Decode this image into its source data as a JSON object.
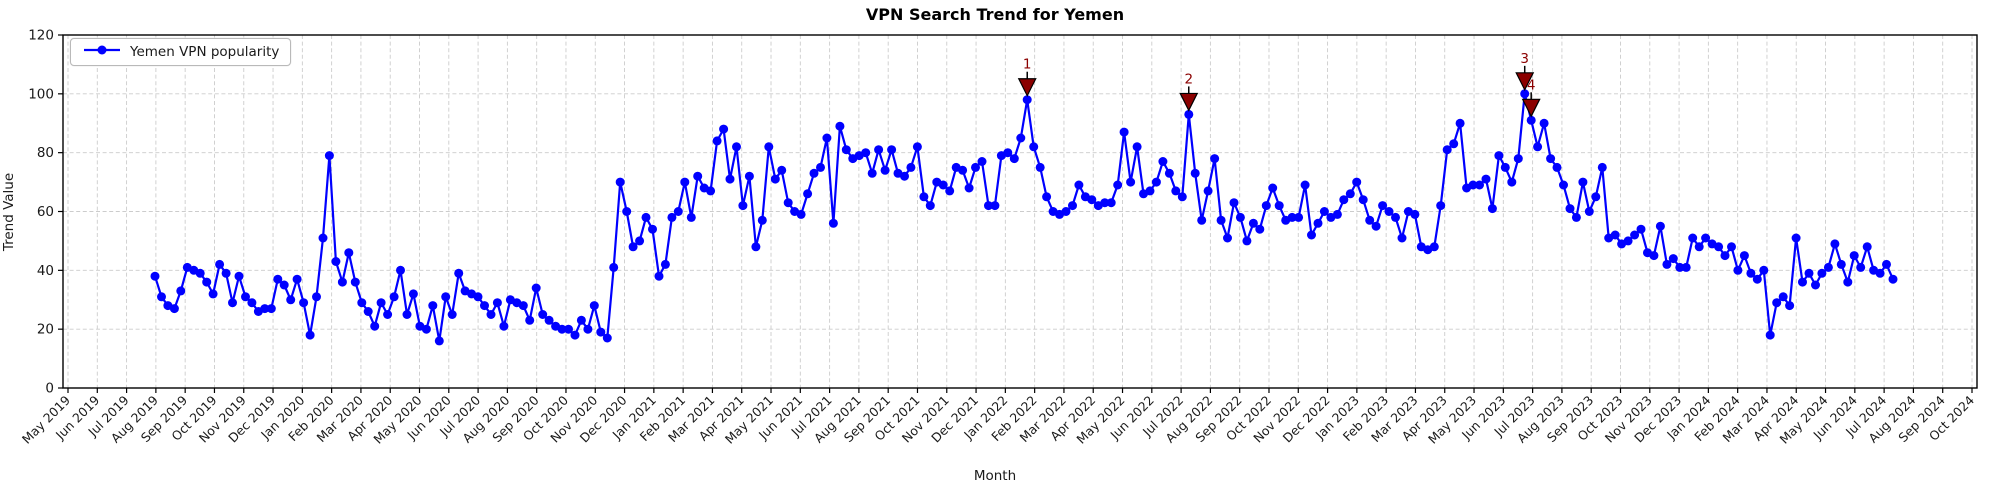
{
  "chart_data": {
    "type": "line",
    "title": "VPN Search Trend for Yemen",
    "xlabel": "Month",
    "ylabel": "Trend Value",
    "ylim": [
      0,
      120
    ],
    "yticks": [
      0,
      20,
      40,
      60,
      80,
      100,
      120
    ],
    "grid": true,
    "legend_position": "upper left",
    "x_tick_labels": [
      "May 2019",
      "Jun 2019",
      "Jul 2019",
      "Aug 2019",
      "Sep 2019",
      "Oct 2019",
      "Nov 2019",
      "Dec 2019",
      "Jan 2020",
      "Feb 2020",
      "Mar 2020",
      "Apr 2020",
      "May 2020",
      "Jun 2020",
      "Jul 2020",
      "Aug 2020",
      "Sep 2020",
      "Oct 2020",
      "Nov 2020",
      "Dec 2020",
      "Jan 2021",
      "Feb 2021",
      "Mar 2021",
      "Apr 2021",
      "May 2021",
      "Jun 2021",
      "Jul 2021",
      "Aug 2021",
      "Sep 2021",
      "Oct 2021",
      "Nov 2021",
      "Dec 2021",
      "Jan 2022",
      "Feb 2022",
      "Mar 2022",
      "Apr 2022",
      "May 2022",
      "Jun 2022",
      "Jul 2022",
      "Aug 2022",
      "Sep 2022",
      "Oct 2022",
      "Nov 2022",
      "Dec 2022",
      "Jan 2023",
      "Feb 2023",
      "Mar 2023",
      "Apr 2023",
      "May 2023",
      "Jun 2023",
      "Jul 2023",
      "Aug 2023",
      "Sep 2023",
      "Oct 2023",
      "Nov 2023",
      "Dec 2023",
      "Jan 2024",
      "Feb 2024",
      "Mar 2024",
      "Apr 2024",
      "May 2024",
      "Jun 2024",
      "Jul 2024",
      "Aug 2024",
      "Sep 2024",
      "Oct 2024"
    ],
    "series": [
      {
        "name": "Yemen VPN popularity",
        "color": "#0000ff",
        "cadence": "weekly",
        "values": [
          38,
          31,
          28,
          27,
          33,
          41,
          40,
          39,
          36,
          32,
          42,
          39,
          29,
          38,
          31,
          29,
          26,
          27,
          27,
          37,
          35,
          30,
          37,
          29,
          18,
          31,
          51,
          79,
          43,
          36,
          46,
          36,
          29,
          26,
          21,
          29,
          25,
          31,
          40,
          25,
          32,
          21,
          20,
          28,
          16,
          31,
          25,
          39,
          33,
          32,
          31,
          28,
          25,
          29,
          21,
          30,
          29,
          28,
          23,
          34,
          25,
          23,
          21,
          20,
          20,
          18,
          23,
          20,
          28,
          19,
          17,
          41,
          70,
          60,
          48,
          50,
          58,
          54,
          38,
          42,
          58,
          60,
          70,
          58,
          72,
          68,
          67,
          84,
          88,
          71,
          82,
          62,
          72,
          48,
          57,
          82,
          71,
          74,
          63,
          60,
          59,
          66,
          73,
          75,
          85,
          56,
          89,
          81,
          78,
          79,
          80,
          73,
          81,
          74,
          81,
          73,
          72,
          75,
          82,
          65,
          62,
          70,
          69,
          67,
          75,
          74,
          68,
          75,
          77,
          62,
          62,
          79,
          80,
          78,
          85,
          98,
          82,
          75,
          65,
          60,
          59,
          60,
          62,
          69,
          65,
          64,
          62,
          63,
          63,
          69,
          87,
          70,
          82,
          66,
          67,
          70,
          77,
          73,
          67,
          65,
          93,
          73,
          57,
          67,
          78,
          57,
          51,
          63,
          58,
          50,
          56,
          54,
          62,
          68,
          62,
          57,
          58,
          58,
          69,
          52,
          56,
          60,
          58,
          59,
          64,
          66,
          70,
          64,
          57,
          55,
          62,
          60,
          58,
          51,
          60,
          59,
          48,
          47,
          48,
          62,
          81,
          83,
          90,
          68,
          69,
          69,
          71,
          61,
          79,
          75,
          70,
          78,
          100,
          91,
          82,
          90,
          78,
          75,
          69,
          61,
          58,
          70,
          60,
          65,
          75,
          51,
          52,
          49,
          50,
          52,
          54,
          46,
          45,
          55,
          42,
          44,
          41,
          41,
          51,
          48,
          51,
          49,
          48,
          45,
          48,
          40,
          45,
          39,
          37,
          40,
          18,
          29,
          31,
          28,
          51,
          36,
          39,
          35,
          39,
          41,
          49,
          42,
          36,
          45,
          41,
          48,
          40,
          39,
          42,
          37
        ]
      }
    ],
    "annotations": [
      {
        "label": "1",
        "index": 135,
        "value": 98
      },
      {
        "label": "2",
        "index": 160,
        "value": 93
      },
      {
        "label": "3",
        "index": 212,
        "value": 100
      },
      {
        "label": "4",
        "index": 213,
        "value": 91
      }
    ],
    "colors": {
      "line": "#0000ff",
      "annotation": "#8b0000",
      "grid": "#cccccc",
      "text": "#1a1a1a",
      "spine": "#000000"
    }
  }
}
